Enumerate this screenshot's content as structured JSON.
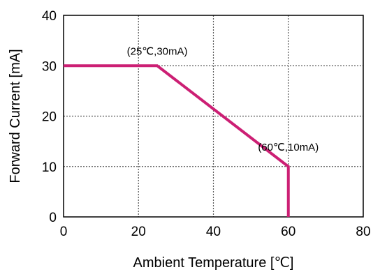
{
  "chart_data": {
    "type": "line",
    "title": "",
    "xlabel": "Ambient Temperature [℃]",
    "ylabel": "Forward Current [mA]",
    "xlim": [
      0,
      80
    ],
    "ylim": [
      0,
      40
    ],
    "x_ticks": [
      0,
      20,
      40,
      60,
      80
    ],
    "y_ticks": [
      0,
      10,
      20,
      30,
      40
    ],
    "x_tick_labels": [
      "0",
      "20",
      "40",
      "60",
      "80"
    ],
    "y_tick_labels": [
      "0",
      "10",
      "20",
      "30",
      "40"
    ],
    "grid": true,
    "series": [
      {
        "color": "#cc1f74",
        "x": [
          0,
          25,
          60,
          60
        ],
        "y": [
          30,
          30,
          10,
          0
        ]
      }
    ],
    "annotations": [
      {
        "text": "(25℃,30mA)",
        "x": 25,
        "y": 30
      },
      {
        "text": "(60℃,10mA)",
        "x": 60,
        "y": 10
      }
    ]
  }
}
